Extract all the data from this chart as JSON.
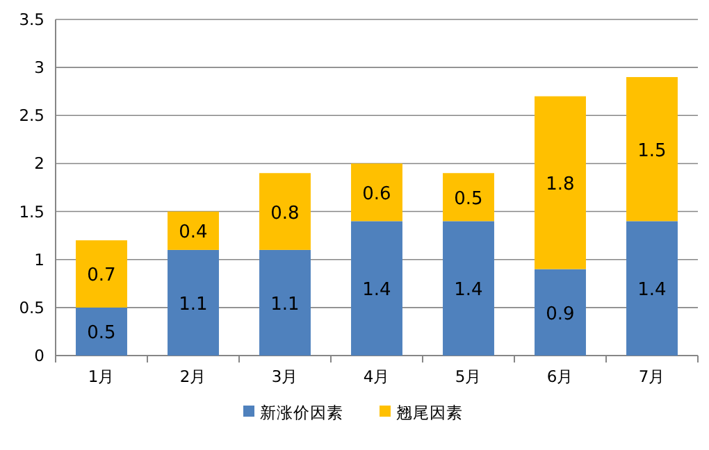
{
  "chart_data": {
    "type": "bar",
    "stacked": true,
    "categories": [
      "1月",
      "2月",
      "3月",
      "4月",
      "5月",
      "6月",
      "7月"
    ],
    "series": [
      {
        "name": "新涨价因素",
        "color": "#4f81bd",
        "values": [
          0.5,
          1.1,
          1.1,
          1.4,
          1.4,
          0.9,
          1.4
        ]
      },
      {
        "name": "翘尾因素",
        "color": "#ffc000",
        "values": [
          0.7,
          0.4,
          0.8,
          0.6,
          0.5,
          1.8,
          1.5
        ]
      }
    ],
    "ylim": [
      0,
      3.5
    ],
    "yticks": [
      0,
      0.5,
      1,
      1.5,
      2,
      2.5,
      3,
      3.5
    ],
    "grid": "y",
    "data_labels": true,
    "legend": "bottom"
  }
}
